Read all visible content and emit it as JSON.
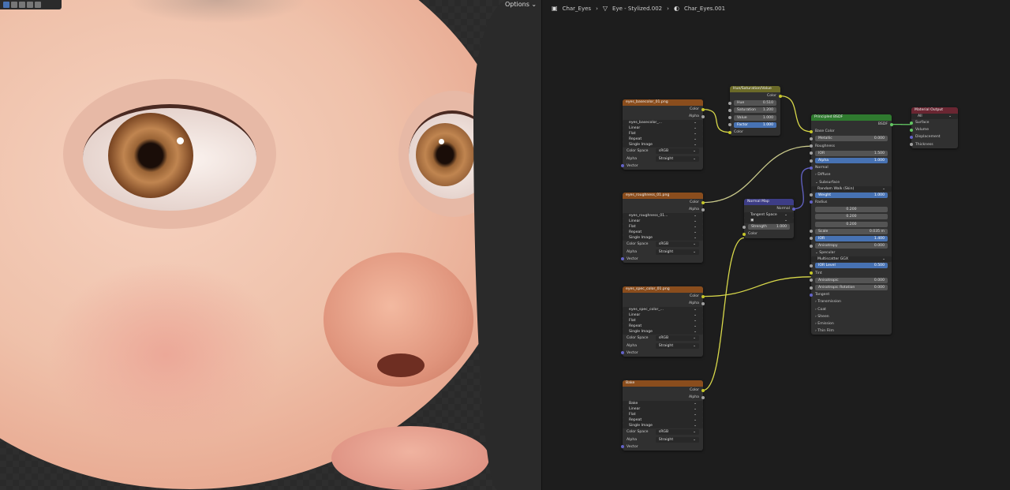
{
  "viewport": {
    "options_label": "Options ⌄",
    "toolbar_icons": [
      "select-box",
      "select-extend",
      "select-subtract",
      "select-invert",
      "select-intersect"
    ]
  },
  "breadcrumb": {
    "items": [
      {
        "icon": "object-icon",
        "label": "Char_Eyes"
      },
      {
        "icon": "mesh-icon",
        "label": "Eye - Stylized.002"
      },
      {
        "icon": "material-icon",
        "label": "Char_Eyes.001"
      }
    ]
  },
  "colors": {
    "image_header": "#8a4d1d",
    "color_header": "#6b6a28",
    "shader_header": "#2f7a2f",
    "output_header": "#6a2632",
    "vector_header": "#3d3d86",
    "socket_yellow": "#c7c729",
    "socket_gray": "#a1a1a1",
    "socket_purple": "#6363c7",
    "socket_green": "#63c763",
    "wire_yellow": "#d8d84a",
    "accent": "#4772b3"
  },
  "nodes": [
    {
      "id": "tex1",
      "type": "image",
      "title": "eyes_basecolor_01.png",
      "rows": [
        {
          "k": "out",
          "label": "Color",
          "sock": "yellow"
        },
        {
          "k": "out",
          "label": "Alpha",
          "sock": "gray"
        },
        {
          "k": "sel",
          "label": "eyes_basecolor_..."
        },
        {
          "k": "sel",
          "label": "Linear"
        },
        {
          "k": "sel",
          "label": "Flat"
        },
        {
          "k": "sel",
          "label": "Repeat"
        },
        {
          "k": "sel",
          "label": "Single Image"
        },
        {
          "k": "sel2",
          "label": "Color Space",
          "value": "sRGB"
        },
        {
          "k": "sel2",
          "label": "Alpha",
          "value": "Straight"
        },
        {
          "k": "in",
          "label": "Vector",
          "sock": "purple"
        }
      ]
    },
    {
      "id": "tex2",
      "type": "image",
      "title": "eyes_roughness_01.png",
      "rows": [
        {
          "k": "out",
          "label": "Color",
          "sock": "yellow"
        },
        {
          "k": "out",
          "label": "Alpha",
          "sock": "gray"
        },
        {
          "k": "sel",
          "label": "eyes_roughness_01..."
        },
        {
          "k": "sel",
          "label": "Linear"
        },
        {
          "k": "sel",
          "label": "Flat"
        },
        {
          "k": "sel",
          "label": "Repeat"
        },
        {
          "k": "sel",
          "label": "Single Image"
        },
        {
          "k": "sel2",
          "label": "Color Space",
          "value": "sRGB"
        },
        {
          "k": "sel2",
          "label": "Alpha",
          "value": "Straight"
        },
        {
          "k": "in",
          "label": "Vector",
          "sock": "purple"
        }
      ]
    },
    {
      "id": "tex3",
      "type": "image",
      "title": "eyes_spec_color_01.png",
      "rows": [
        {
          "k": "out",
          "label": "Color",
          "sock": "yellow"
        },
        {
          "k": "out",
          "label": "Alpha",
          "sock": "gray"
        },
        {
          "k": "sel",
          "label": "eyes_spec_color_..."
        },
        {
          "k": "sel",
          "label": "Linear"
        },
        {
          "k": "sel",
          "label": "Flat"
        },
        {
          "k": "sel",
          "label": "Repeat"
        },
        {
          "k": "sel",
          "label": "Single Image"
        },
        {
          "k": "sel2",
          "label": "Color Space",
          "value": "sRGB"
        },
        {
          "k": "sel2",
          "label": "Alpha",
          "value": "Straight"
        },
        {
          "k": "in",
          "label": "Vector",
          "sock": "purple"
        }
      ]
    },
    {
      "id": "bake",
      "type": "image",
      "title": "Bake",
      "rows": [
        {
          "k": "out",
          "label": "Color",
          "sock": "yellow"
        },
        {
          "k": "out",
          "label": "Alpha",
          "sock": "gray"
        },
        {
          "k": "sel",
          "label": "Bake"
        },
        {
          "k": "sel",
          "label": "Linear"
        },
        {
          "k": "sel",
          "label": "Flat"
        },
        {
          "k": "sel",
          "label": "Repeat"
        },
        {
          "k": "sel",
          "label": "Single Image"
        },
        {
          "k": "sel2",
          "label": "Color Space",
          "value": "sRGB"
        },
        {
          "k": "sel2",
          "label": "Alpha",
          "value": "Straight"
        },
        {
          "k": "in",
          "label": "Vector",
          "sock": "purple"
        }
      ]
    },
    {
      "id": "hsv",
      "type": "color",
      "title": "Hue/Saturation/Value",
      "rows": [
        {
          "k": "out",
          "label": "Color",
          "sock": "yellow"
        },
        {
          "k": "field",
          "label": "Hue",
          "value": "0.510",
          "sock": "gray"
        },
        {
          "k": "field",
          "label": "Saturation",
          "value": "1.200",
          "sock": "gray"
        },
        {
          "k": "field",
          "label": "Value",
          "value": "1.000",
          "sock": "gray"
        },
        {
          "k": "field",
          "label": "Factor",
          "value": "1.000",
          "sock": "gray",
          "hl": true
        },
        {
          "k": "in",
          "label": "Color",
          "sock": "yellow"
        }
      ]
    },
    {
      "id": "bsdf",
      "type": "shader",
      "title": "Principled BSDF",
      "rows": [
        {
          "k": "out",
          "label": "BSDF",
          "sock": "green"
        },
        {
          "k": "in",
          "label": "Base Color",
          "sock": "yellow"
        },
        {
          "k": "field",
          "label": "Metallic",
          "value": "0.000",
          "sock": "gray"
        },
        {
          "k": "in",
          "label": "Roughness",
          "sock": "gray"
        },
        {
          "k": "field",
          "label": "IOR",
          "value": "1.500",
          "sock": "gray"
        },
        {
          "k": "field",
          "label": "Alpha",
          "value": "1.000",
          "sock": "gray",
          "hl": true
        },
        {
          "k": "in",
          "label": "Normal",
          "sock": "purple"
        },
        {
          "k": "text",
          "label": "›  Diffuse"
        },
        {
          "k": "text",
          "label": "⌄  Subsurface"
        },
        {
          "k": "sel",
          "label": "Random Walk (Skin)"
        },
        {
          "k": "field",
          "label": "Weight",
          "value": "1.000",
          "sock": "gray",
          "hl": true
        },
        {
          "k": "in",
          "label": "Radius",
          "sock": "purple"
        },
        {
          "k": "vec",
          "value": "0.200"
        },
        {
          "k": "vec",
          "value": "0.200"
        },
        {
          "k": "vec",
          "value": "0.200"
        },
        {
          "k": "field",
          "label": "Scale",
          "value": "0.035 m",
          "sock": "gray"
        },
        {
          "k": "field",
          "label": "IOR",
          "value": "1.400",
          "sock": "gray",
          "hl": true
        },
        {
          "k": "field",
          "label": "Anisotropy",
          "value": "0.000",
          "sock": "gray"
        },
        {
          "k": "text",
          "label": "⌄  Specular"
        },
        {
          "k": "sel",
          "label": "Multiscatter GGX"
        },
        {
          "k": "field",
          "label": "IOR Level",
          "value": "0.500",
          "sock": "gray",
          "hl": true
        },
        {
          "k": "in",
          "label": "Tint",
          "sock": "yellow"
        },
        {
          "k": "field",
          "label": "Anisotropic",
          "value": "0.000",
          "sock": "gray"
        },
        {
          "k": "field",
          "label": "Anisotropic Rotation",
          "value": "0.000",
          "sock": "gray"
        },
        {
          "k": "in",
          "label": "Tangent",
          "sock": "purple"
        },
        {
          "k": "text",
          "label": "›  Transmission"
        },
        {
          "k": "text",
          "label": "›  Coat"
        },
        {
          "k": "text",
          "label": "›  Sheen"
        },
        {
          "k": "text",
          "label": "›  Emission"
        },
        {
          "k": "text",
          "label": "›  Thin Film"
        }
      ]
    },
    {
      "id": "out",
      "type": "output",
      "title": "Material Output",
      "rows": [
        {
          "k": "sel",
          "label": "All"
        },
        {
          "k": "in",
          "label": "Surface",
          "sock": "green"
        },
        {
          "k": "in",
          "label": "Volume",
          "sock": "green"
        },
        {
          "k": "in",
          "label": "Displacement",
          "sock": "purple"
        },
        {
          "k": "in",
          "label": "Thickness",
          "sock": "gray"
        }
      ]
    },
    {
      "id": "nmap",
      "type": "vector",
      "title": "Normal Map",
      "rows": [
        {
          "k": "out",
          "label": "Normal",
          "sock": "purple"
        },
        {
          "k": "sel",
          "label": "Tangent Space"
        },
        {
          "k": "sel",
          "label": "▣"
        },
        {
          "k": "field",
          "label": "Strength",
          "value": "1.000",
          "sock": "gray"
        },
        {
          "k": "in",
          "label": "Color",
          "sock": "yellow"
        }
      ]
    }
  ]
}
